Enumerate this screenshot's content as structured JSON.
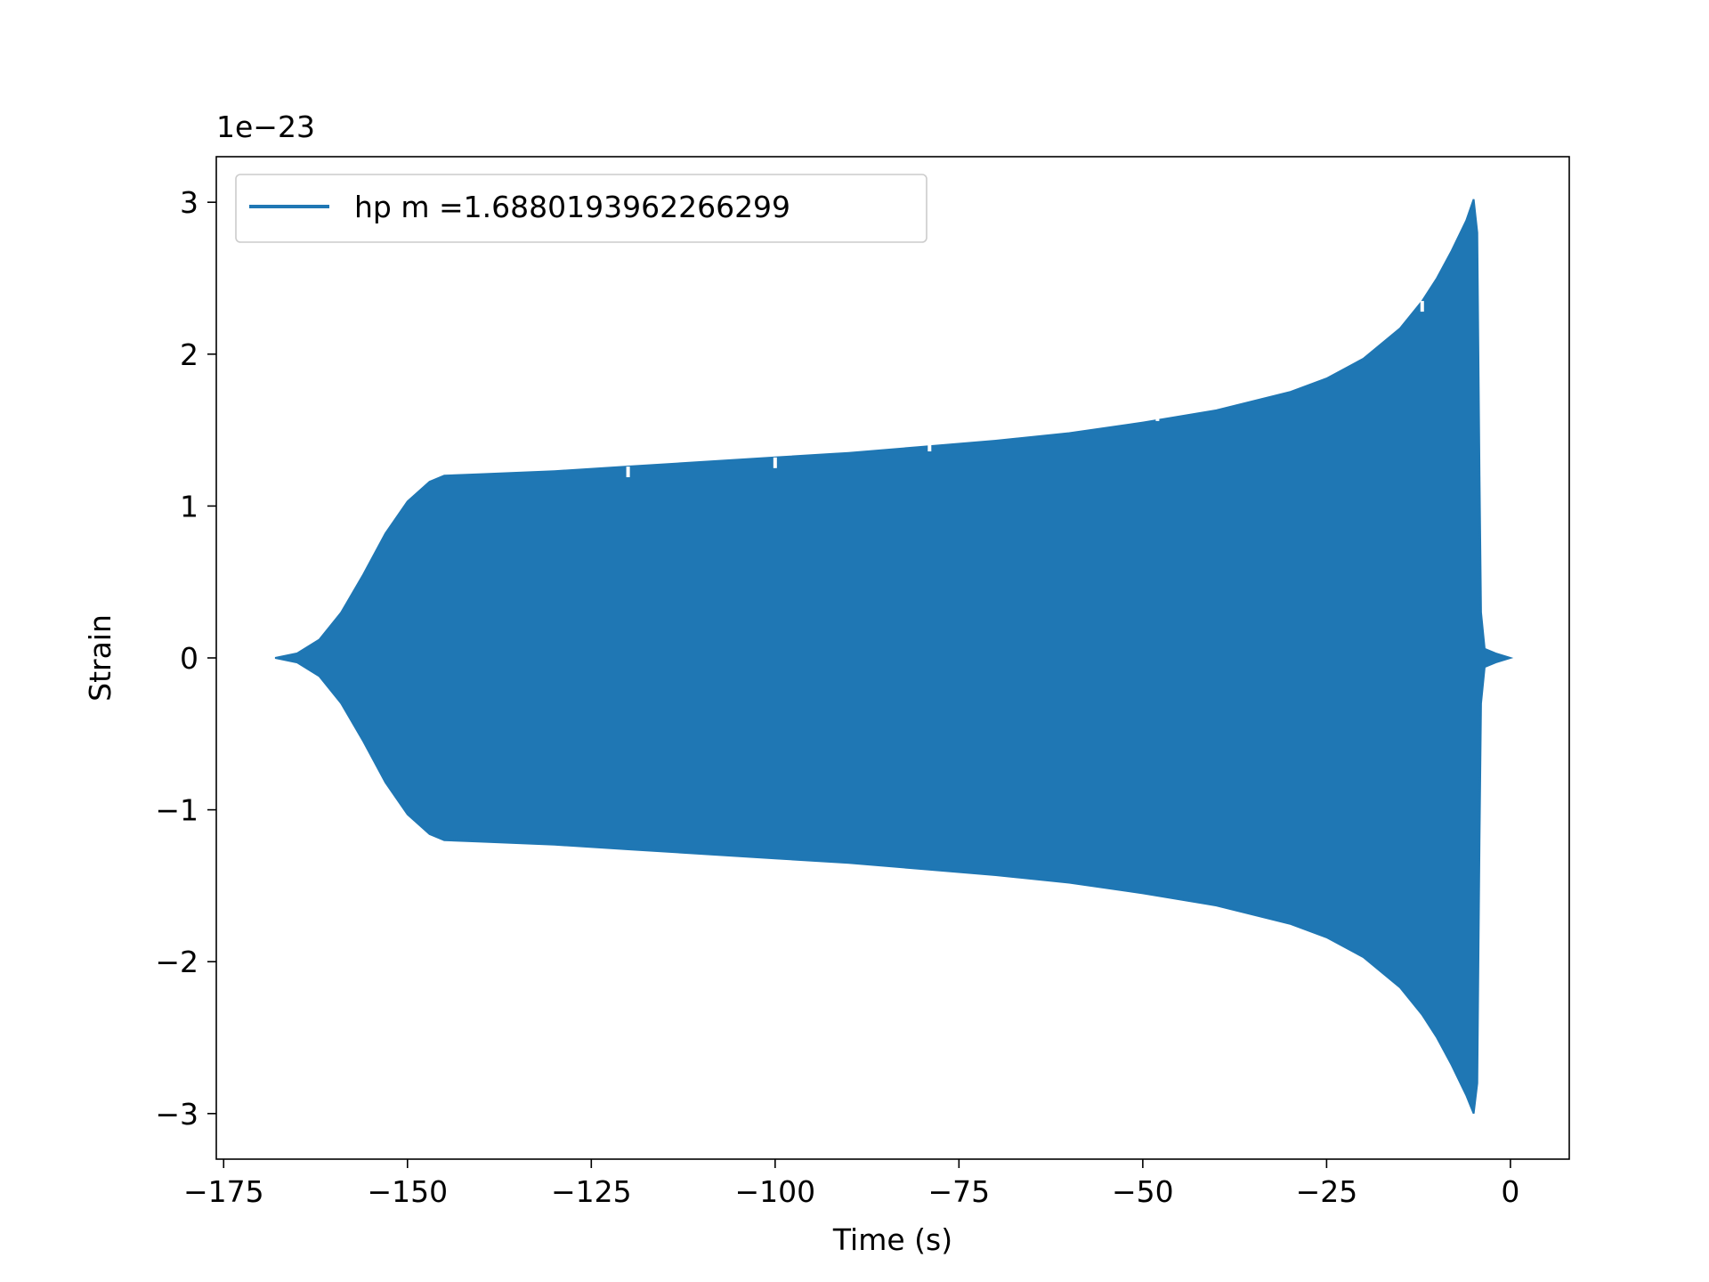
{
  "chart_data": {
    "type": "line",
    "xlabel": "Time (s)",
    "ylabel": "Strain",
    "y_offset_label": "1e−23",
    "xlim": [
      -176,
      8
    ],
    "ylim": [
      -3.3,
      3.3
    ],
    "x_ticks": [
      -175,
      -150,
      -125,
      -100,
      -75,
      -50,
      -25,
      0
    ],
    "x_tick_labels": [
      "−175",
      "−150",
      "−125",
      "−100",
      "−75",
      "−50",
      "−25",
      "0"
    ],
    "y_ticks": [
      -3,
      -2,
      -1,
      0,
      1,
      2,
      3
    ],
    "y_tick_labels": [
      "−3",
      "−2",
      "−1",
      "0",
      "1",
      "2",
      "3"
    ],
    "grid": false,
    "legend_position": "top-left",
    "series": [
      {
        "name": "hp m =1.6880193962266299",
        "color": "#1f77b4",
        "description_envelope_upper": [
          [
            -168.0,
            0.0
          ],
          [
            -165.0,
            0.03
          ],
          [
            -162.0,
            0.12
          ],
          [
            -159.0,
            0.3
          ],
          [
            -156.0,
            0.55
          ],
          [
            -153.0,
            0.82
          ],
          [
            -150.0,
            1.03
          ],
          [
            -147.0,
            1.16
          ],
          [
            -145.0,
            1.2
          ],
          [
            -140.0,
            1.21
          ],
          [
            -130.0,
            1.23
          ],
          [
            -120.0,
            1.26
          ],
          [
            -110.0,
            1.29
          ],
          [
            -100.0,
            1.32
          ],
          [
            -90.0,
            1.35
          ],
          [
            -80.0,
            1.39
          ],
          [
            -70.0,
            1.43
          ],
          [
            -60.0,
            1.48
          ],
          [
            -50.0,
            1.55
          ],
          [
            -40.0,
            1.63
          ],
          [
            -30.0,
            1.75
          ],
          [
            -25.0,
            1.84
          ],
          [
            -20.0,
            1.97
          ],
          [
            -15.0,
            2.17
          ],
          [
            -12.0,
            2.35
          ],
          [
            -10.0,
            2.5
          ],
          [
            -8.0,
            2.68
          ],
          [
            -6.0,
            2.88
          ],
          [
            -5.0,
            3.02
          ],
          [
            -4.5,
            2.8
          ],
          [
            -4.2,
            1.2
          ],
          [
            -4.0,
            0.3
          ],
          [
            -3.5,
            0.06
          ],
          [
            -2.0,
            0.03
          ],
          [
            0.0,
            0.0
          ]
        ],
        "envelope_lower": [
          [
            -168.0,
            0.0
          ],
          [
            -165.0,
            -0.03
          ],
          [
            -162.0,
            -0.12
          ],
          [
            -159.0,
            -0.3
          ],
          [
            -156.0,
            -0.55
          ],
          [
            -153.0,
            -0.82
          ],
          [
            -150.0,
            -1.03
          ],
          [
            -147.0,
            -1.16
          ],
          [
            -145.0,
            -1.2
          ],
          [
            -140.0,
            -1.21
          ],
          [
            -130.0,
            -1.23
          ],
          [
            -120.0,
            -1.26
          ],
          [
            -110.0,
            -1.29
          ],
          [
            -100.0,
            -1.32
          ],
          [
            -90.0,
            -1.35
          ],
          [
            -80.0,
            -1.39
          ],
          [
            -70.0,
            -1.43
          ],
          [
            -60.0,
            -1.48
          ],
          [
            -50.0,
            -1.55
          ],
          [
            -40.0,
            -1.63
          ],
          [
            -30.0,
            -1.75
          ],
          [
            -25.0,
            -1.84
          ],
          [
            -20.0,
            -1.97
          ],
          [
            -15.0,
            -2.17
          ],
          [
            -12.0,
            -2.35
          ],
          [
            -10.0,
            -2.5
          ],
          [
            -8.0,
            -2.68
          ],
          [
            -6.0,
            -2.88
          ],
          [
            -5.0,
            -3.0
          ],
          [
            -4.5,
            -2.8
          ],
          [
            -4.2,
            -1.2
          ],
          [
            -4.0,
            -0.3
          ],
          [
            -3.5,
            -0.06
          ],
          [
            -2.0,
            -0.03
          ],
          [
            0.0,
            0.0
          ]
        ]
      }
    ]
  }
}
